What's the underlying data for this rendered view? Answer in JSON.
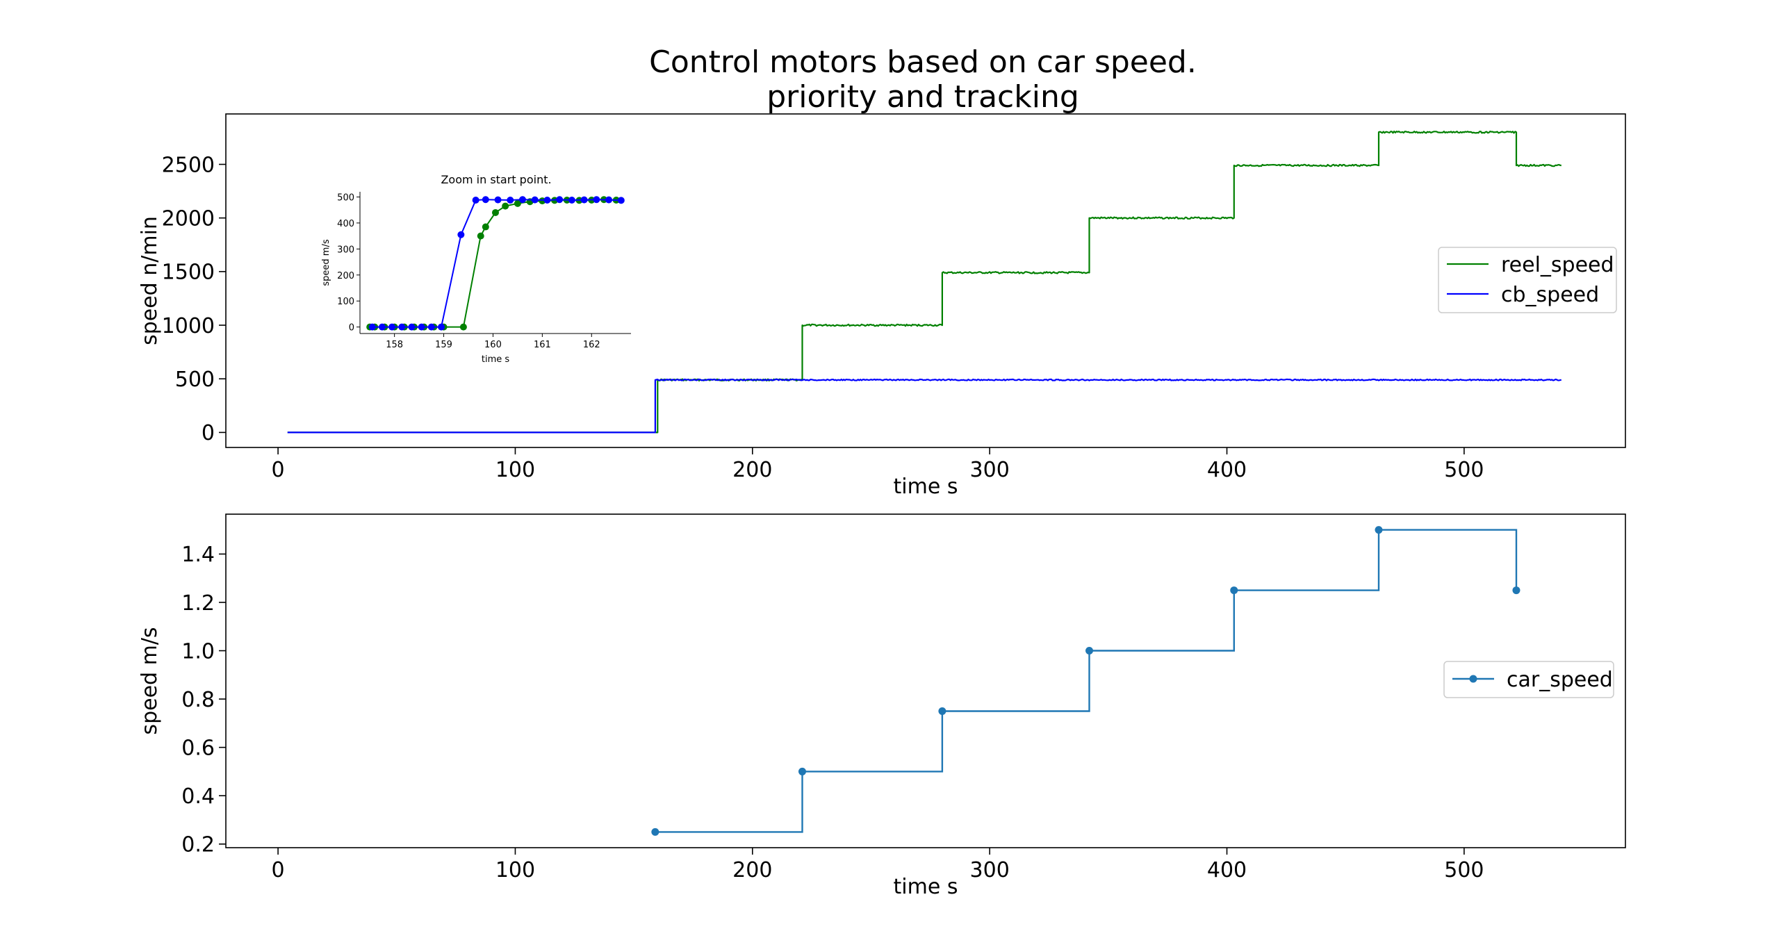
{
  "figure": {
    "title_line1": "Control motors based on car speed.",
    "title_line2": "priority and tracking"
  },
  "chart_data": [
    {
      "type": "line",
      "id": "top",
      "xlabel": "time s",
      "ylabel": "speed n/min",
      "xlim": [
        -22,
        568
      ],
      "ylim": [
        -140,
        2970
      ],
      "xticks": [
        0,
        100,
        200,
        300,
        400,
        500
      ],
      "yticks": [
        0,
        500,
        1000,
        1500,
        2000,
        2500
      ],
      "grid": false,
      "legend_position": "center-right",
      "colors": {
        "reel_speed": "#008000",
        "cb_speed": "#0000ff"
      },
      "series": [
        {
          "name": "reel_speed",
          "color": "#008000",
          "steps": [
            {
              "start": 4,
              "end": 160,
              "value": 0
            },
            {
              "start": 160,
              "end": 221,
              "value": 490
            },
            {
              "start": 221,
              "end": 280,
              "value": 1000
            },
            {
              "start": 280,
              "end": 342,
              "value": 1490
            },
            {
              "start": 342,
              "end": 403,
              "value": 2000
            },
            {
              "start": 403,
              "end": 464,
              "value": 2490
            },
            {
              "start": 464,
              "end": 522,
              "value": 2800
            },
            {
              "start": 522,
              "end": 541,
              "value": 2490
            }
          ]
        },
        {
          "name": "cb_speed",
          "color": "#0000ff",
          "steps": [
            {
              "start": 4,
              "end": 159,
              "value": 0
            },
            {
              "start": 159,
              "end": 541,
              "value": 490
            }
          ]
        }
      ],
      "inset": {
        "type": "line",
        "title": "Zoom in start point.",
        "xlabel": "time s",
        "ylabel": "speed m/s",
        "xlim": [
          157.3,
          162.8
        ],
        "ylim": [
          -25,
          520
        ],
        "xticks": [
          158,
          159,
          160,
          161,
          162
        ],
        "yticks": [
          0,
          100,
          200,
          300,
          400,
          500
        ],
        "series": [
          {
            "name": "reel_speed",
            "color": "#008000",
            "x": [
              157.5,
              157.6,
              157.8,
              158.0,
              158.2,
              158.4,
              158.6,
              158.8,
              159.0,
              159.4,
              159.75,
              159.85,
              160.05,
              160.25,
              160.5,
              160.75,
              161.0,
              161.25,
              161.5,
              161.75,
              162.0,
              162.25,
              162.5
            ],
            "y": [
              0,
              0,
              0,
              0,
              0,
              0,
              0,
              0,
              0,
              0,
              350,
              385,
              440,
              465,
              475,
              482,
              485,
              487,
              488,
              487,
              488,
              490,
              488
            ]
          },
          {
            "name": "cb_speed",
            "color": "#0000ff",
            "x": [
              157.55,
              157.75,
              157.95,
              158.15,
              158.35,
              158.55,
              158.75,
              158.95,
              159.35,
              159.65,
              159.85,
              160.1,
              160.35,
              160.6,
              160.85,
              161.1,
              161.35,
              161.6,
              161.85,
              162.1,
              162.35,
              162.6
            ],
            "y": [
              0,
              0,
              0,
              0,
              0,
              0,
              0,
              0,
              355,
              488,
              490,
              489,
              488,
              490,
              489,
              488,
              490,
              488,
              489,
              490,
              489,
              487
            ]
          }
        ]
      }
    },
    {
      "type": "line",
      "id": "bottom",
      "xlabel": "time s",
      "ylabel": "speed m/s",
      "xlim": [
        -22,
        568
      ],
      "ylim": [
        0.185,
        1.565
      ],
      "xticks": [
        0,
        100,
        200,
        300,
        400,
        500
      ],
      "yticks": [
        0.2,
        0.4,
        0.6,
        0.8,
        1.0,
        1.2,
        1.4
      ],
      "grid": false,
      "legend_position": "center-right",
      "drawstyle": "steps-post",
      "marker": "o",
      "series": [
        {
          "name": "car_speed",
          "color": "#1f77b4",
          "x": [
            159,
            221,
            280,
            342,
            403,
            464,
            522
          ],
          "y": [
            0.25,
            0.5,
            0.75,
            1.0,
            1.25,
            1.5,
            1.25
          ]
        }
      ]
    }
  ]
}
